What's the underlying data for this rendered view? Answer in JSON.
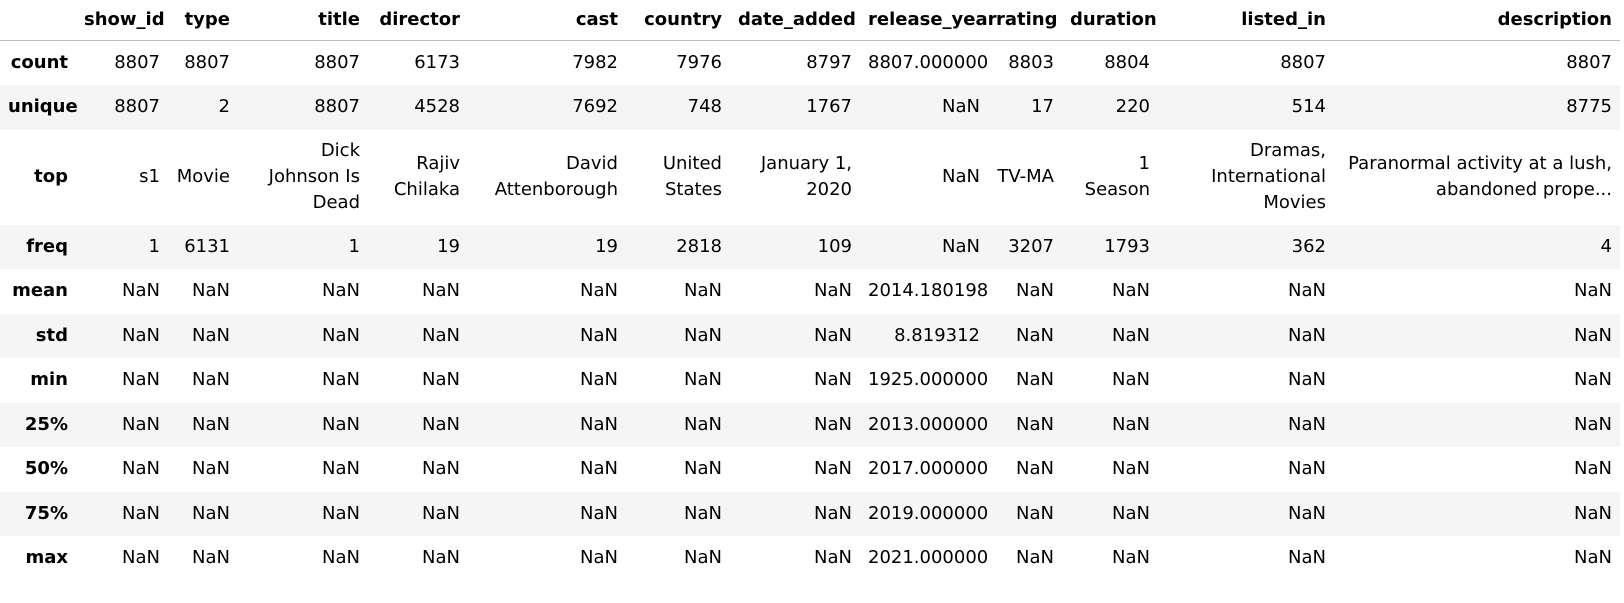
{
  "table": {
    "columns": [
      "",
      "show_id",
      "type",
      "title",
      "director",
      "cast",
      "country",
      "date_added",
      "release_year",
      "rating",
      "duration",
      "listed_in",
      "description"
    ],
    "rows": [
      {
        "label": "count",
        "cells": [
          "8807",
          "8807",
          "8807",
          "6173",
          "7982",
          "7976",
          "8797",
          "8807.000000",
          "8803",
          "8804",
          "8807",
          "8807"
        ]
      },
      {
        "label": "unique",
        "cells": [
          "8807",
          "2",
          "8807",
          "4528",
          "7692",
          "748",
          "1767",
          "NaN",
          "17",
          "220",
          "514",
          "8775"
        ]
      },
      {
        "label": "top",
        "cells": [
          "s1",
          "Movie",
          "Dick Johnson Is Dead",
          "Rajiv Chilaka",
          "David Attenborough",
          "United States",
          "January 1, 2020",
          "NaN",
          "TV-MA",
          "1 Season",
          "Dramas, International Movies",
          "Paranormal activity at a lush, abandoned prope..."
        ]
      },
      {
        "label": "freq",
        "cells": [
          "1",
          "6131",
          "1",
          "19",
          "19",
          "2818",
          "109",
          "NaN",
          "3207",
          "1793",
          "362",
          "4"
        ]
      },
      {
        "label": "mean",
        "cells": [
          "NaN",
          "NaN",
          "NaN",
          "NaN",
          "NaN",
          "NaN",
          "NaN",
          "2014.180198",
          "NaN",
          "NaN",
          "NaN",
          "NaN"
        ]
      },
      {
        "label": "std",
        "cells": [
          "NaN",
          "NaN",
          "NaN",
          "NaN",
          "NaN",
          "NaN",
          "NaN",
          "8.819312",
          "NaN",
          "NaN",
          "NaN",
          "NaN"
        ]
      },
      {
        "label": "min",
        "cells": [
          "NaN",
          "NaN",
          "NaN",
          "NaN",
          "NaN",
          "NaN",
          "NaN",
          "1925.000000",
          "NaN",
          "NaN",
          "NaN",
          "NaN"
        ]
      },
      {
        "label": "25%",
        "cells": [
          "NaN",
          "NaN",
          "NaN",
          "NaN",
          "NaN",
          "NaN",
          "NaN",
          "2013.000000",
          "NaN",
          "NaN",
          "NaN",
          "NaN"
        ]
      },
      {
        "label": "50%",
        "cells": [
          "NaN",
          "NaN",
          "NaN",
          "NaN",
          "NaN",
          "NaN",
          "NaN",
          "2017.000000",
          "NaN",
          "NaN",
          "NaN",
          "NaN"
        ]
      },
      {
        "label": "75%",
        "cells": [
          "NaN",
          "NaN",
          "NaN",
          "NaN",
          "NaN",
          "NaN",
          "NaN",
          "2019.000000",
          "NaN",
          "NaN",
          "NaN",
          "NaN"
        ]
      },
      {
        "label": "max",
        "cells": [
          "NaN",
          "NaN",
          "NaN",
          "NaN",
          "NaN",
          "NaN",
          "NaN",
          "2021.000000",
          "NaN",
          "NaN",
          "NaN",
          "NaN"
        ]
      }
    ]
  }
}
